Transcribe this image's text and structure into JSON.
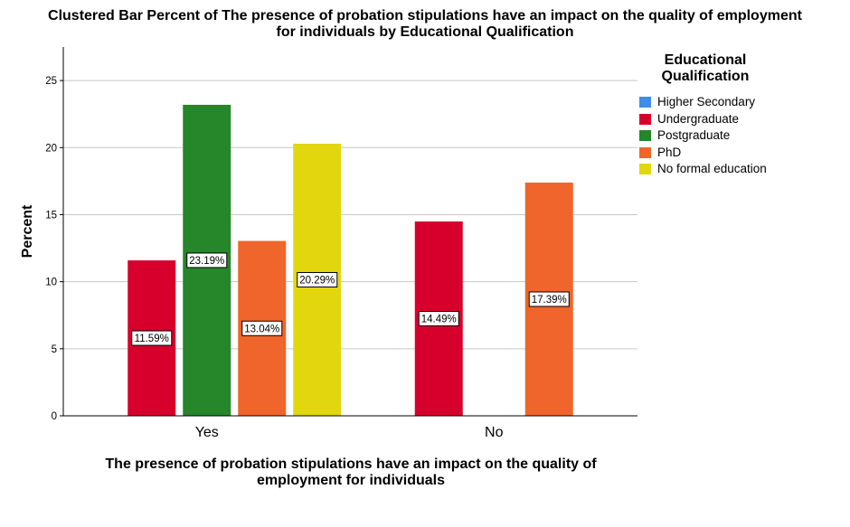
{
  "chart_data": {
    "type": "bar",
    "title_line1": "Clustered Bar Percent of The presence of probation stipulations have an impact on the quality of employment",
    "title_line2": "for individuals by Educational Qualification",
    "xlabel_line1": "The presence of probation stipulations have an impact on the quality of",
    "xlabel_line2": "employment for individuals",
    "ylabel": "Percent",
    "ylim": [
      0,
      27.5
    ],
    "yticks": [
      0,
      5,
      10,
      15,
      20,
      25
    ],
    "grid": true,
    "legend_title_line1": "Educational",
    "legend_title_line2": "Qualification",
    "legend_position": "right",
    "categories": [
      "Yes",
      "No"
    ],
    "series": [
      {
        "name": "Higher Secondary",
        "color": "#3d8ee8",
        "values": [
          null,
          null
        ],
        "labels": [
          "",
          ""
        ]
      },
      {
        "name": "Undergraduate",
        "color": "#d7002c",
        "values": [
          11.59,
          14.49
        ],
        "labels": [
          "11.59%",
          "14.49%"
        ]
      },
      {
        "name": "Postgraduate",
        "color": "#25862a",
        "values": [
          23.19,
          null
        ],
        "labels": [
          "23.19%",
          ""
        ]
      },
      {
        "name": "PhD",
        "color": "#f0652b",
        "values": [
          13.04,
          17.39
        ],
        "labels": [
          "13.04%",
          "17.39%"
        ]
      },
      {
        "name": "No formal education",
        "color": "#e2d60e",
        "values": [
          20.29,
          null
        ],
        "labels": [
          "20.29%",
          ""
        ]
      }
    ]
  }
}
